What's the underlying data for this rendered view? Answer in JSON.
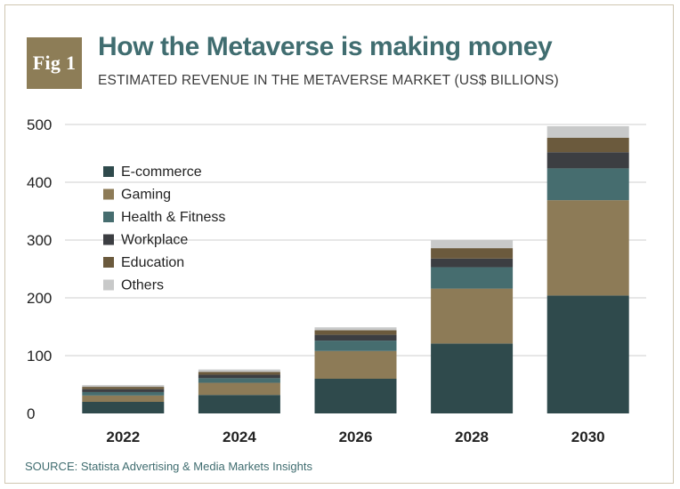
{
  "badge": "Fig 1",
  "title": "How the Metaverse is making money",
  "subtitle": "ESTIMATED REVENUE IN THE METAVERSE MARKET (US$ BILLIONS)",
  "source": "SOURCE: Statista Advertising & Media Markets Insights",
  "colors": {
    "title": "#406d70",
    "badge_bg": "#8d7d57",
    "grid": "#cfcfcf"
  },
  "chart_data": {
    "type": "bar",
    "stacked": true,
    "title": "How the Metaverse is making money",
    "subtitle": "ESTIMATED REVENUE IN THE METAVERSE MARKET (US$ BILLIONS)",
    "xlabel": "",
    "ylabel": "",
    "categories": [
      "2022",
      "2024",
      "2026",
      "2028",
      "2030"
    ],
    "ylim": [
      0,
      500
    ],
    "yticks": [
      0,
      100,
      200,
      300,
      400,
      500
    ],
    "grid": true,
    "legend_position": "top-left",
    "series": [
      {
        "name": "E-commerce",
        "color": "#2f4a4c",
        "values": [
          20,
          32,
          60,
          121,
          204
        ]
      },
      {
        "name": "Gaming",
        "color": "#8d7b57",
        "values": [
          11,
          21,
          48,
          95,
          165
        ]
      },
      {
        "name": "Health & Fitness",
        "color": "#466d6f",
        "values": [
          6,
          8,
          18,
          37,
          55
        ]
      },
      {
        "name": "Workplace",
        "color": "#3c3e42",
        "values": [
          5,
          6,
          10,
          15,
          28
        ]
      },
      {
        "name": "Education",
        "color": "#6b5a3d",
        "values": [
          4,
          5,
          8,
          18,
          25
        ]
      },
      {
        "name": "Others",
        "color": "#c8c9c9",
        "values": [
          3,
          4,
          5,
          14,
          20
        ]
      }
    ]
  }
}
